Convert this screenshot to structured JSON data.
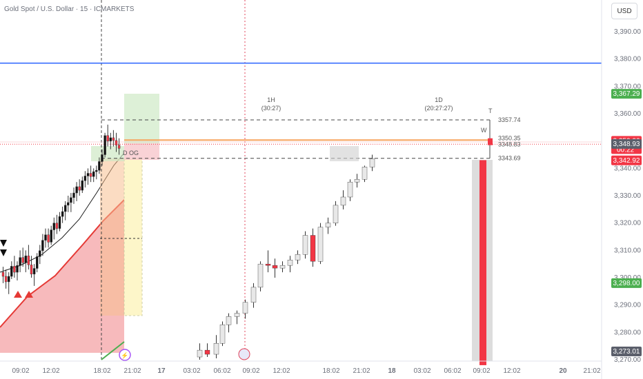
{
  "header": {
    "title": "Gold Spot / U.S. Dollar · 15 · ICMARKETS",
    "currency": "USD"
  },
  "colors": {
    "up": "#e8e8e8",
    "down": "#f23645",
    "blue_line": "#2962ff",
    "orange_line": "#f7a35c",
    "green_tag": "#4caf50",
    "red_tag": "#f23645",
    "grey_tag": "#5b5f6b"
  },
  "chart_data": {
    "type": "candlestick",
    "yaxis": {
      "ticks": [
        "3,390.00",
        "3,380.00",
        "3,370.00",
        "3,360.00",
        "3,350.00",
        "3,340.00",
        "3,330.00",
        "3,320.00",
        "3,310.00",
        "3,300.00",
        "3,290.00",
        "3,280.00",
        "3,270.00"
      ],
      "tick_values": [
        3390,
        3380,
        3370,
        3360,
        3350,
        3340,
        3330,
        3320,
        3310,
        3300,
        3290,
        3280,
        3270
      ]
    },
    "xaxis": {
      "ticks": [
        "09:02",
        "12:02",
        "18:02",
        "21:02",
        "17",
        "03:02",
        "06:02",
        "09:02",
        "12:02",
        "18:02",
        "21:02",
        "18",
        "03:02",
        "06:02",
        "09:02",
        "12:02",
        "20",
        "21:02"
      ]
    },
    "price_tags": [
      {
        "label": "3,367.29",
        "value": 3367.29,
        "style": "green"
      },
      {
        "label": "3,350.06",
        "value": 3350.06,
        "style": "red",
        "sub": "00:22"
      },
      {
        "label": "3,348.93",
        "value": 3348.93,
        "style": "grey"
      },
      {
        "label": "3,342.92",
        "value": 3342.92,
        "style": "red"
      },
      {
        "label": "3,298.00",
        "value": 3298.0,
        "style": "green"
      },
      {
        "label": "3,273.01",
        "value": 3273.01,
        "style": "grey"
      }
    ],
    "levels": [
      {
        "label": "3357.74",
        "value": 3357.74
      },
      {
        "label": "3350.35",
        "value": 3350.35
      },
      {
        "label": "3348.83",
        "value": 3348.83
      },
      {
        "label": "3343.69",
        "value": 3343.69
      }
    ],
    "blue_level": {
      "value": 3378.5,
      "marker": "1"
    },
    "session_labels": [
      {
        "name": "1H",
        "timer": "(30:27)"
      },
      {
        "name": "1D",
        "timer": "(20:27:27)"
      }
    ],
    "annotations": {
      "og_label": "D OG",
      "t_marker": "T",
      "w_marker": "W"
    },
    "right_block_candles": [
      {
        "open": 3343,
        "close": 3268,
        "high": 3343,
        "low": 3268
      }
    ],
    "candles": [
      {
        "o": 3302.0,
        "h": 3304.0,
        "l": 3298.0,
        "c": 3300.5
      },
      {
        "o": 3300.5,
        "h": 3303.0,
        "l": 3296.0,
        "c": 3298.5
      },
      {
        "o": 3298.5,
        "h": 3302.0,
        "l": 3294.0,
        "c": 3300.5
      },
      {
        "o": 3300.5,
        "h": 3306.0,
        "l": 3299.5,
        "c": 3304.2
      },
      {
        "o": 3304.2,
        "h": 3308.0,
        "l": 3300.0,
        "c": 3302.0
      },
      {
        "o": 3302.0,
        "h": 3306.0,
        "l": 3299.0,
        "c": 3304.5
      },
      {
        "o": 3304.5,
        "h": 3310.0,
        "l": 3302.0,
        "c": 3307.4
      },
      {
        "o": 3307.4,
        "h": 3311.0,
        "l": 3304.0,
        "c": 3305.5
      },
      {
        "o": 3305.5,
        "h": 3310.0,
        "l": 3302.0,
        "c": 3308.0
      },
      {
        "o": 3308.0,
        "h": 3312.0,
        "l": 3303.0,
        "c": 3304.7
      },
      {
        "o": 3304.7,
        "h": 3308.0,
        "l": 3300.0,
        "c": 3301.3
      },
      {
        "o": 3301.3,
        "h": 3305.0,
        "l": 3297.0,
        "c": 3303.4
      },
      {
        "o": 3303.4,
        "h": 3309.0,
        "l": 3302.0,
        "c": 3307.7
      },
      {
        "o": 3307.7,
        "h": 3312.0,
        "l": 3305.0,
        "c": 3309.9
      },
      {
        "o": 3309.9,
        "h": 3316.0,
        "l": 3308.0,
        "c": 3313.7
      },
      {
        "o": 3313.7,
        "h": 3318.0,
        "l": 3311.0,
        "c": 3315.7
      },
      {
        "o": 3315.7,
        "h": 3318.0,
        "l": 3311.0,
        "c": 3313.0
      },
      {
        "o": 3313.0,
        "h": 3319.0,
        "l": 3312.0,
        "c": 3317.5
      },
      {
        "o": 3317.5,
        "h": 3322.0,
        "l": 3314.0,
        "c": 3320.0
      },
      {
        "o": 3320.0,
        "h": 3323.0,
        "l": 3316.0,
        "c": 3318.0
      },
      {
        "o": 3318.0,
        "h": 3324.0,
        "l": 3317.0,
        "c": 3322.4
      },
      {
        "o": 3322.4,
        "h": 3326.0,
        "l": 3320.0,
        "c": 3324.2
      },
      {
        "o": 3324.2,
        "h": 3328.0,
        "l": 3321.0,
        "c": 3326.5
      },
      {
        "o": 3326.5,
        "h": 3330.0,
        "l": 3324.0,
        "c": 3327.5
      },
      {
        "o": 3327.5,
        "h": 3331.0,
        "l": 3324.0,
        "c": 3329.3
      },
      {
        "o": 3329.3,
        "h": 3333.0,
        "l": 3327.0,
        "c": 3331.0
      },
      {
        "o": 3331.0,
        "h": 3335.0,
        "l": 3328.0,
        "c": 3333.3
      },
      {
        "o": 3333.3,
        "h": 3336.0,
        "l": 3330.0,
        "c": 3332.0
      },
      {
        "o": 3332.0,
        "h": 3337.0,
        "l": 3331.0,
        "c": 3335.5
      },
      {
        "o": 3335.5,
        "h": 3339.0,
        "l": 3333.0,
        "c": 3337.2
      },
      {
        "o": 3337.2,
        "h": 3340.0,
        "l": 3334.0,
        "c": 3338.2
      },
      {
        "o": 3338.2,
        "h": 3341.0,
        "l": 3335.0,
        "c": 3337.0
      },
      {
        "o": 3337.0,
        "h": 3340.0,
        "l": 3335.0,
        "c": 3338.8
      },
      {
        "o": 3338.8,
        "h": 3341.0,
        "l": 3336.0,
        "c": 3339.3
      },
      {
        "o": 3339.3,
        "h": 3344.0,
        "l": 3338.0,
        "c": 3342.5
      },
      {
        "o": 3342.5,
        "h": 3347.0,
        "l": 3341.0,
        "c": 3345.0
      },
      {
        "o": 3345.0,
        "h": 3353.0,
        "l": 3344.0,
        "c": 3352.0
      },
      {
        "o": 3352.0,
        "h": 3356.0,
        "l": 3348.0,
        "c": 3350.0
      },
      {
        "o": 3350.0,
        "h": 3353.0,
        "l": 3347.0,
        "c": 3351.2
      },
      {
        "o": 3351.2,
        "h": 3354.0,
        "l": 3348.0,
        "c": 3350.2
      },
      {
        "o": 3350.2,
        "h": 3353.0,
        "l": 3346.0,
        "c": 3348.5
      },
      {
        "o": 3348.5,
        "h": 3351.0,
        "l": 3345.0,
        "c": 3347.3
      },
      {
        "o": 3271.0,
        "h": 3276.0,
        "l": 3270.0,
        "c": 3273.5
      },
      {
        "o": 3273.5,
        "h": 3276.0,
        "l": 3271.0,
        "c": 3272.0
      },
      {
        "o": 3272.0,
        "h": 3279.0,
        "l": 3270.5,
        "c": 3276.0
      },
      {
        "o": 3276.0,
        "h": 3284.0,
        "l": 3275.0,
        "c": 3282.8
      },
      {
        "o": 3282.8,
        "h": 3287.0,
        "l": 3280.0,
        "c": 3285.8
      },
      {
        "o": 3285.8,
        "h": 3288.0,
        "l": 3283.0,
        "c": 3287.0
      },
      {
        "o": 3287.0,
        "h": 3292.0,
        "l": 3285.0,
        "c": 3291.0
      },
      {
        "o": 3291.0,
        "h": 3298.0,
        "l": 3289.0,
        "c": 3296.5
      },
      {
        "o": 3296.5,
        "h": 3306.0,
        "l": 3295.0,
        "c": 3305.0
      },
      {
        "o": 3305.0,
        "h": 3310.0,
        "l": 3302.0,
        "c": 3304.5
      },
      {
        "o": 3304.5,
        "h": 3307.0,
        "l": 3300.0,
        "c": 3303.5
      },
      {
        "o": 3303.5,
        "h": 3306.0,
        "l": 3302.0,
        "c": 3304.5
      },
      {
        "o": 3304.5,
        "h": 3308.0,
        "l": 3302.0,
        "c": 3306.5
      },
      {
        "o": 3306.5,
        "h": 3310.0,
        "l": 3305.0,
        "c": 3308.5
      },
      {
        "o": 3308.5,
        "h": 3317.0,
        "l": 3307.0,
        "c": 3315.5
      },
      {
        "o": 3315.5,
        "h": 3318.0,
        "l": 3304.0,
        "c": 3306.0
      },
      {
        "o": 3306.0,
        "h": 3320.0,
        "l": 3305.0,
        "c": 3318.5
      },
      {
        "o": 3318.5,
        "h": 3322.0,
        "l": 3316.0,
        "c": 3320.0
      },
      {
        "o": 3320.0,
        "h": 3328.0,
        "l": 3319.0,
        "c": 3326.5
      },
      {
        "o": 3326.5,
        "h": 3332.0,
        "l": 3325.0,
        "c": 3329.5
      },
      {
        "o": 3329.5,
        "h": 3336.0,
        "l": 3328.0,
        "c": 3335.0
      },
      {
        "o": 3335.0,
        "h": 3338.0,
        "l": 3333.0,
        "c": 3336.0
      },
      {
        "o": 3336.0,
        "h": 3341.0,
        "l": 3335.0,
        "c": 3340.5
      },
      {
        "o": 3340.5,
        "h": 3345.0,
        "l": 3339.0,
        "c": 3343.5
      },
      {
        "o": 3343.5,
        "h": 3357.7,
        "l": 3342.0,
        "c": 3350.5
      },
      {
        "o": 3350.5,
        "h": 3352.0,
        "l": 3347.0,
        "c": 3349.0
      },
      {
        "o": 3349.0,
        "h": 3352.0,
        "l": 3346.0,
        "c": 3351.0
      },
      {
        "o": 3351.0,
        "h": 3352.0,
        "l": 3344.0,
        "c": 3350.0
      }
    ]
  }
}
